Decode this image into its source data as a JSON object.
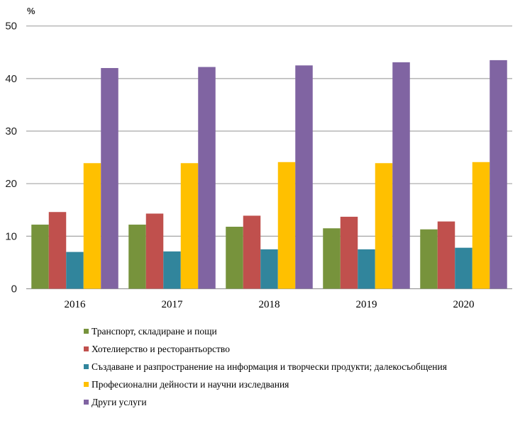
{
  "chart_data": {
    "type": "bar",
    "title": "",
    "unit_label": "%",
    "xlabel": "",
    "ylabel": "%",
    "ylim": [
      0,
      50
    ],
    "yticks": [
      0,
      10,
      20,
      30,
      40,
      50
    ],
    "grid": true,
    "legend_position": "bottom",
    "categories": [
      "2016",
      "2017",
      "2018",
      "2019",
      "2020"
    ],
    "series": [
      {
        "name": "Транспорт, складиране и пощи",
        "color": "#77933C",
        "values": [
          12.2,
          12.2,
          11.8,
          11.5,
          11.3
        ]
      },
      {
        "name": "Хотелиерство и ресторантьорство",
        "color": "#C0504D",
        "values": [
          14.6,
          14.3,
          13.9,
          13.7,
          12.8
        ]
      },
      {
        "name": "Създаване и разпространение на информация и творчески продукти; далекосъобщения",
        "color": "#31859C",
        "values": [
          7.0,
          7.1,
          7.5,
          7.5,
          7.8
        ]
      },
      {
        "name": "Професионални дейности и научни изследвания",
        "color": "#FFC000",
        "values": [
          23.9,
          23.9,
          24.1,
          23.9,
          24.1
        ]
      },
      {
        "name": "Други услуги",
        "color": "#8064A2",
        "values": [
          42.0,
          42.2,
          42.5,
          43.1,
          43.5
        ]
      }
    ]
  }
}
